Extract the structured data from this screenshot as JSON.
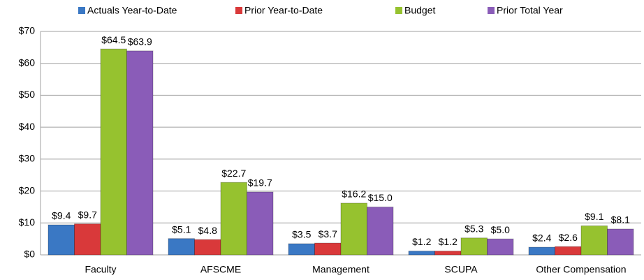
{
  "chart_data": {
    "type": "bar",
    "categories": [
      "Faculty",
      "AFSCME",
      "Management",
      "SCUPA",
      "Other Compensation"
    ],
    "series": [
      {
        "name": "Actuals Year-to-Date",
        "color": "#3a78c4",
        "values": [
          9.4,
          5.1,
          3.5,
          1.2,
          2.4
        ],
        "value_labels": [
          "$9.4",
          "$5.1",
          "$3.5",
          "$1.2",
          "$2.4"
        ]
      },
      {
        "name": "Prior Year-to-Date",
        "color": "#d9393a",
        "values": [
          9.7,
          4.8,
          3.7,
          1.2,
          2.6
        ],
        "value_labels": [
          "$9.7",
          "$4.8",
          "$3.7",
          "$1.2",
          "$2.6"
        ]
      },
      {
        "name": "Budget",
        "color": "#96c22f",
        "values": [
          64.5,
          22.7,
          16.2,
          5.3,
          9.1
        ],
        "value_labels": [
          "$64.5",
          "$22.7",
          "$16.2",
          "$5.3",
          "$9.1"
        ]
      },
      {
        "name": "Prior Total Year",
        "color": "#8a5cb8",
        "values": [
          63.9,
          19.7,
          15.0,
          5.0,
          8.1
        ],
        "value_labels": [
          "$63.9",
          "$19.7",
          "$15.0",
          "$5.0",
          "$8.1"
        ]
      }
    ],
    "ylim": [
      0,
      70
    ],
    "yticks": [
      {
        "value": 0,
        "label": "$0"
      },
      {
        "value": 10,
        "label": "$10"
      },
      {
        "value": 20,
        "label": "$20"
      },
      {
        "value": 30,
        "label": "$30"
      },
      {
        "value": 40,
        "label": "$40"
      },
      {
        "value": 50,
        "label": "$50"
      },
      {
        "value": 60,
        "label": "$60"
      },
      {
        "value": 70,
        "label": "$70"
      }
    ],
    "grid": true,
    "legend": "top"
  }
}
